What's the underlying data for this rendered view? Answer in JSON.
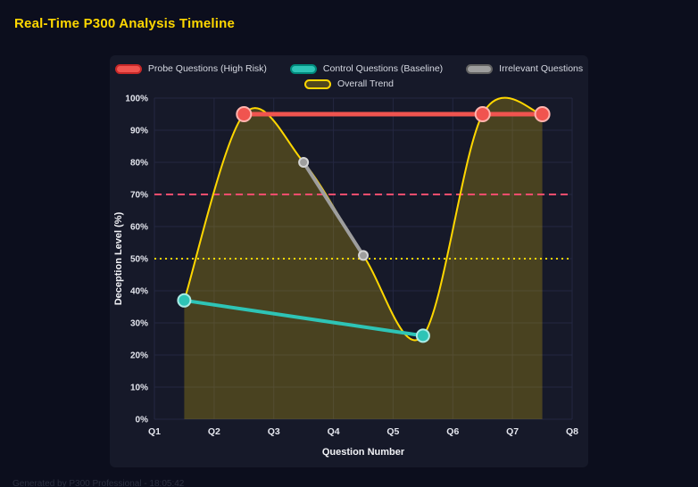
{
  "page": {
    "title": "Real-Time P300 Analysis Timeline",
    "footer": "Generated by P300 Professional - 18:05:42"
  },
  "colors": {
    "background": "#0c0e1d",
    "panel": "#161929",
    "grid": "#242741",
    "title": "#ffd700",
    "tick_text": "#e4e6ee",
    "axis_text": "#f2f3f7",
    "legend_text": "#d6d9e2",
    "area_fill": "rgba(255,215,0,0.22)",
    "footer": "#2c3040"
  },
  "chart_data": {
    "type": "line",
    "title": "Real-Time P300 Analysis Timeline",
    "xlabel": "Question Number",
    "ylabel": "Deception Level (%)",
    "x_ticks": [
      "Q1",
      "Q2",
      "Q3",
      "Q4",
      "Q5",
      "Q6",
      "Q7",
      "Q8"
    ],
    "x_range": [
      1,
      8
    ],
    "ylim": [
      0,
      100
    ],
    "y_tick_step": 10,
    "y_tick_suffix": "%",
    "grid": true,
    "legend_position": "top",
    "legend_rows": [
      [
        0,
        1,
        2
      ],
      [
        3
      ]
    ],
    "draw_order": [
      3,
      2,
      1,
      0
    ],
    "series": [
      {
        "name": "Probe Questions (High Risk)",
        "type": "line",
        "color": "#f0544f",
        "point_stroke": "#ffb4ae",
        "legend_fill": "#f0544f",
        "legend_border": "#c62828",
        "line_width": 5,
        "point_radius": 8,
        "smooth": false,
        "fill": false,
        "points": [
          {
            "x": 2.5,
            "y": 95
          },
          {
            "x": 6.5,
            "y": 95
          },
          {
            "x": 7.5,
            "y": 95
          }
        ]
      },
      {
        "name": "Control Questions (Baseline)",
        "type": "line",
        "color": "#2ec4b6",
        "point_stroke": "#a9ece6",
        "legend_fill": "#2ec4b6",
        "legend_border": "#00897b",
        "line_width": 4,
        "point_radius": 7,
        "smooth": false,
        "fill": false,
        "points": [
          {
            "x": 1.5,
            "y": 37
          },
          {
            "x": 5.5,
            "y": 26
          }
        ]
      },
      {
        "name": "Irrelevant Questions",
        "type": "line",
        "color": "#9e9e9e",
        "point_stroke": "#d4d4d4",
        "legend_fill": "#9e9e9e",
        "legend_border": "#616161",
        "line_width": 4,
        "point_radius": 5,
        "smooth": false,
        "fill": false,
        "points": [
          {
            "x": 3.5,
            "y": 80
          },
          {
            "x": 4.5,
            "y": 51
          }
        ]
      },
      {
        "name": "Overall Trend",
        "type": "line",
        "color": "#ffd700",
        "point_stroke": "#ffd700",
        "legend_fill": "rgba(255,215,0,0.25)",
        "legend_border": "#ffd700",
        "line_width": 2,
        "point_radius": 0,
        "smooth": true,
        "fill": true,
        "points": [
          {
            "x": 1.5,
            "y": 37
          },
          {
            "x": 2.5,
            "y": 95
          },
          {
            "x": 3.5,
            "y": 80
          },
          {
            "x": 4.5,
            "y": 51
          },
          {
            "x": 5.5,
            "y": 26
          },
          {
            "x": 6.5,
            "y": 95
          },
          {
            "x": 7.5,
            "y": 95
          }
        ]
      }
    ],
    "thresholds": [
      {
        "y": 70,
        "color": "#ff4d6d",
        "style": "dashed",
        "width": 2
      },
      {
        "y": 50,
        "color": "#ffd700",
        "style": "dotted",
        "width": 2
      }
    ]
  }
}
